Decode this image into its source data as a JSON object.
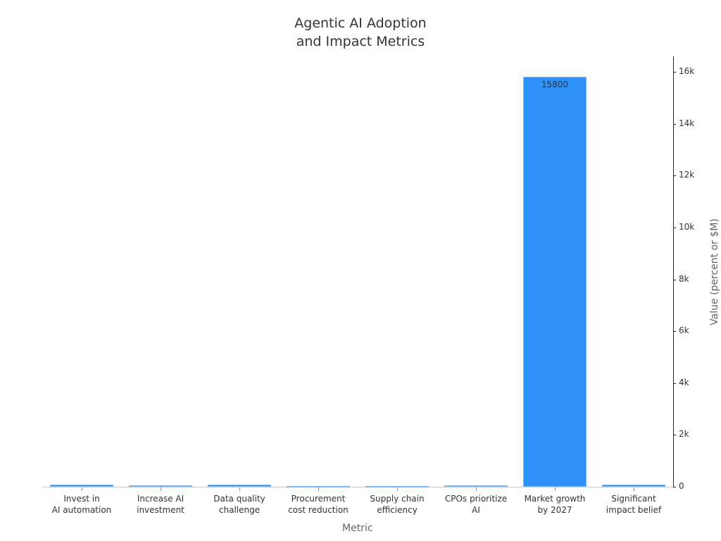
{
  "chart_data": {
    "type": "bar",
    "title": "Agentic AI Adoption and Impact Metrics",
    "title_lines": [
      "Agentic AI Adoption",
      "and Impact Metrics"
    ],
    "xlabel": "Metric",
    "ylabel": "Value (percent or $M)",
    "categories": [
      "Invest in AI automation",
      "Increase AI investment",
      "Data quality challenge",
      "Procurement cost reduction",
      "Supply chain efficiency",
      "CPOs prioritize AI",
      "Market growth by 2027",
      "Significant impact belief"
    ],
    "category_lines": [
      [
        "Invest in",
        "AI automation"
      ],
      [
        "Increase AI",
        "investment"
      ],
      [
        "Data quality",
        "challenge"
      ],
      [
        "Procurement",
        "cost reduction"
      ],
      [
        "Supply chain",
        "efficiency"
      ],
      [
        "CPOs prioritize",
        "AI"
      ],
      [
        "Market growth",
        "by 2027"
      ],
      [
        "Significant",
        "impact belief"
      ]
    ],
    "values": [
      92,
      62,
      85,
      15,
      20,
      60,
      15800,
      90
    ],
    "data_labels": {
      "6": "15800"
    },
    "ylim": [
      0,
      16600
    ],
    "yticks": [
      0,
      2000,
      4000,
      6000,
      8000,
      10000,
      12000,
      14000,
      16000
    ],
    "ytick_labels": [
      "0",
      "2k",
      "4k",
      "6k",
      "8k",
      "10k",
      "12k",
      "14k",
      "16k"
    ],
    "y_axis_position": "right",
    "grid": false,
    "legend": null,
    "colors": {
      "bar": "#2f92f8",
      "bar_edge": "#74b6f6"
    }
  }
}
